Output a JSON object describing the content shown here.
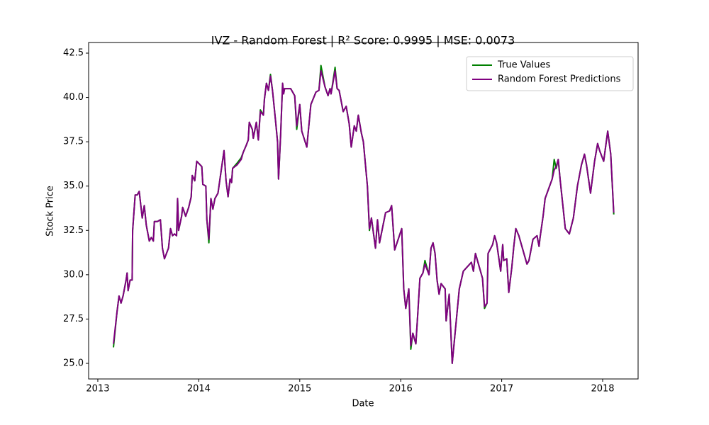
{
  "chart_data": {
    "type": "line",
    "title": "IVZ - Random Forest | R² Score: 0.9995 | MSE: 0.0073",
    "xlabel": "Date",
    "ylabel": "Stock Price",
    "legend": "upper right",
    "grid": false,
    "xlim": [
      2012.909,
      2018.351
    ],
    "ylim": [
      24.12,
      43.1
    ],
    "xticks": [
      2013,
      2014,
      2015,
      2016,
      2017,
      2018
    ],
    "yticks": [
      {
        "value": 25,
        "label": "25.0"
      },
      {
        "value": 27.5,
        "label": "27.5"
      },
      {
        "value": 30,
        "label": "30.0"
      },
      {
        "value": 32.5,
        "label": "32.5"
      },
      {
        "value": 35,
        "label": "35.0"
      },
      {
        "value": 37.5,
        "label": "37.5"
      },
      {
        "value": 40,
        "label": "40.0"
      },
      {
        "value": 42.5,
        "label": "42.5"
      }
    ],
    "x": [
      2013.155,
      2013.19,
      2013.21,
      2013.23,
      2013.25,
      2013.28,
      2013.29,
      2013.3,
      2013.32,
      2013.34,
      2013.345,
      2013.37,
      2013.39,
      2013.41,
      2013.44,
      2013.46,
      2013.48,
      2013.51,
      2013.53,
      2013.55,
      2013.56,
      2013.59,
      2013.62,
      2013.64,
      2013.66,
      2013.7,
      2013.72,
      2013.74,
      2013.76,
      2013.78,
      2013.79,
      2013.8,
      2013.83,
      2013.84,
      2013.87,
      2013.9,
      2013.925,
      2013.935,
      2013.96,
      2013.98,
      2014.03,
      2014.04,
      2014.07,
      2014.08,
      2014.1,
      2014.12,
      2014.14,
      2014.16,
      2014.19,
      2014.22,
      2014.25,
      2014.27,
      2014.29,
      2014.31,
      2014.325,
      2014.335,
      2014.38,
      2014.42,
      2014.44,
      2014.47,
      2014.49,
      2014.5,
      2014.53,
      2014.54,
      2014.57,
      2014.59,
      2014.61,
      2014.64,
      2014.65,
      2014.67,
      2014.69,
      2014.71,
      2014.73,
      2014.76,
      2014.78,
      2014.79,
      2014.81,
      2014.83,
      2014.84,
      2014.85,
      2014.91,
      2014.95,
      2014.97,
      2015.0,
      2015.02,
      2015.07,
      2015.11,
      2015.16,
      2015.19,
      2015.21,
      2015.25,
      2015.28,
      2015.3,
      2015.31,
      2015.35,
      2015.37,
      2015.39,
      2015.43,
      2015.46,
      2015.49,
      2015.51,
      2015.54,
      2015.56,
      2015.58,
      2015.61,
      2015.63,
      2015.67,
      2015.69,
      2015.71,
      2015.75,
      2015.77,
      2015.79,
      2015.85,
      2015.89,
      2015.91,
      2015.94,
      2016.01,
      2016.03,
      2016.05,
      2016.08,
      2016.1,
      2016.12,
      2016.15,
      2016.17,
      2016.19,
      2016.22,
      2016.24,
      2016.28,
      2016.3,
      2016.32,
      2016.34,
      2016.36,
      2016.38,
      2016.4,
      2016.44,
      2016.45,
      2016.48,
      2016.51,
      2016.55,
      2016.58,
      2016.62,
      2016.7,
      2016.72,
      2016.74,
      2016.78,
      2016.81,
      2016.83,
      2016.855,
      2016.865,
      2016.91,
      2016.93,
      2016.95,
      2016.99,
      2017.01,
      2017.02,
      2017.05,
      2017.07,
      2017.1,
      2017.12,
      2017.14,
      2017.17,
      2017.2,
      2017.25,
      2017.27,
      2017.31,
      2017.35,
      2017.37,
      2017.38,
      2017.41,
      2017.43,
      2017.5,
      2017.52,
      2017.54,
      2017.56,
      2017.58,
      2017.63,
      2017.67,
      2017.71,
      2017.73,
      2017.75,
      2017.79,
      2017.82,
      2017.84,
      2017.88,
      2017.92,
      2017.95,
      2017.97,
      2018.01,
      2018.05,
      2018.08,
      2018.11
    ],
    "series": [
      {
        "name": "True Values",
        "color": "#008000",
        "values": [
          25.9,
          27.9,
          28.8,
          28.4,
          28.8,
          29.7,
          30.1,
          29.1,
          29.7,
          29.7,
          32.5,
          34.5,
          34.5,
          34.7,
          33.2,
          33.9,
          32.8,
          31.9,
          32.1,
          31.9,
          33.0,
          33.0,
          33.1,
          31.5,
          30.9,
          31.5,
          32.6,
          32.2,
          32.3,
          32.2,
          34.3,
          32.5,
          33.3,
          33.8,
          33.3,
          33.8,
          34.4,
          35.6,
          35.3,
          36.4,
          36.1,
          35.1,
          35.0,
          33.1,
          31.8,
          34.3,
          33.7,
          34.3,
          34.6,
          35.8,
          37.0,
          35.3,
          34.4,
          35.4,
          35.2,
          36.0,
          36.3,
          36.6,
          36.9,
          37.3,
          37.6,
          38.6,
          38.2,
          37.7,
          38.6,
          37.6,
          39.3,
          39.0,
          39.9,
          40.8,
          40.4,
          41.3,
          40.4,
          38.7,
          37.5,
          35.4,
          37.8,
          40.8,
          40.2,
          40.5,
          40.5,
          40.1,
          38.2,
          39.6,
          38.1,
          37.2,
          39.6,
          40.3,
          40.4,
          41.8,
          40.6,
          40.1,
          40.5,
          40.2,
          41.7,
          40.5,
          40.4,
          39.2,
          39.5,
          38.5,
          37.2,
          38.4,
          38.1,
          39.0,
          38.0,
          37.5,
          35.0,
          32.5,
          33.2,
          31.5,
          33.1,
          31.8,
          33.5,
          33.6,
          33.9,
          31.4,
          32.6,
          29.2,
          28.1,
          29.2,
          25.8,
          26.7,
          26.1,
          27.9,
          29.8,
          30.1,
          30.8,
          30.0,
          31.5,
          31.8,
          31.2,
          29.7,
          28.9,
          29.5,
          29.2,
          27.4,
          28.9,
          25.0,
          27.4,
          29.2,
          30.2,
          30.7,
          30.2,
          31.2,
          30.4,
          29.8,
          28.1,
          28.4,
          31.2,
          31.7,
          32.2,
          31.8,
          30.2,
          31.7,
          30.8,
          30.9,
          29.0,
          30.4,
          31.6,
          32.6,
          32.2,
          31.6,
          30.6,
          30.8,
          32.0,
          32.2,
          31.6,
          32.1,
          33.3,
          34.3,
          35.4,
          36.5,
          36.0,
          36.5,
          35.3,
          32.6,
          32.3,
          33.2,
          34.1,
          35.0,
          36.2,
          36.8,
          36.2,
          34.6,
          36.4,
          37.4,
          37.0,
          36.4,
          38.1,
          36.8,
          33.4
        ]
      },
      {
        "name": "Random Forest Predictions",
        "color": "#800080",
        "values": [
          26.1,
          27.9,
          28.8,
          28.4,
          28.8,
          29.7,
          30.1,
          29.1,
          29.7,
          29.7,
          32.5,
          34.5,
          34.5,
          34.7,
          33.2,
          33.9,
          32.8,
          31.9,
          32.1,
          31.9,
          33.0,
          33.0,
          33.1,
          31.5,
          30.9,
          31.5,
          32.6,
          32.2,
          32.3,
          32.2,
          34.3,
          32.5,
          33.3,
          33.8,
          33.3,
          33.8,
          34.4,
          35.6,
          35.3,
          36.4,
          36.1,
          35.1,
          35.0,
          33.1,
          32.0,
          34.3,
          33.7,
          34.3,
          34.6,
          35.8,
          37.0,
          35.3,
          34.4,
          35.4,
          35.2,
          36.0,
          36.2,
          36.5,
          36.9,
          37.3,
          37.6,
          38.6,
          38.2,
          37.7,
          38.6,
          37.6,
          39.2,
          39.0,
          39.9,
          40.8,
          40.4,
          41.2,
          40.4,
          38.7,
          37.5,
          35.4,
          37.8,
          40.8,
          40.2,
          40.5,
          40.5,
          40.1,
          38.4,
          39.6,
          38.1,
          37.2,
          39.6,
          40.3,
          40.4,
          41.5,
          40.6,
          40.1,
          40.5,
          40.2,
          41.5,
          40.5,
          40.4,
          39.2,
          39.5,
          38.5,
          37.2,
          38.4,
          38.1,
          39.0,
          38.0,
          37.5,
          35.0,
          32.6,
          33.2,
          31.5,
          33.1,
          31.8,
          33.5,
          33.6,
          33.9,
          31.4,
          32.6,
          29.2,
          28.1,
          29.2,
          26.0,
          26.7,
          26.1,
          27.9,
          29.8,
          30.1,
          30.6,
          30.0,
          31.5,
          31.8,
          31.2,
          29.7,
          28.9,
          29.5,
          29.2,
          27.4,
          28.9,
          25.0,
          27.4,
          29.2,
          30.2,
          30.7,
          30.2,
          31.2,
          30.4,
          29.8,
          28.2,
          28.4,
          31.2,
          31.7,
          32.2,
          31.8,
          30.2,
          31.7,
          30.8,
          30.9,
          29.0,
          30.4,
          31.6,
          32.6,
          32.2,
          31.6,
          30.6,
          30.8,
          32.0,
          32.2,
          31.6,
          32.1,
          33.3,
          34.3,
          35.4,
          35.9,
          36.1,
          36.5,
          35.3,
          32.6,
          32.3,
          33.2,
          34.1,
          35.0,
          36.2,
          36.8,
          36.2,
          34.6,
          36.4,
          37.4,
          37.0,
          36.4,
          38.1,
          36.8,
          33.5
        ]
      }
    ]
  }
}
